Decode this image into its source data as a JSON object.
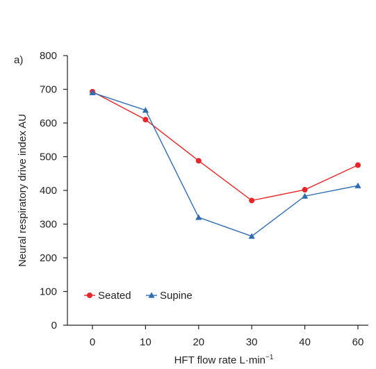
{
  "chart_data": {
    "type": "line",
    "panel_label": "a)",
    "xlabel": "HFT flow rate L·min",
    "xlabel_sup": "−1",
    "ylabel": "Neural respiratory drive index AU",
    "categories": [
      "0",
      "10",
      "20",
      "30",
      "40",
      "60"
    ],
    "ylim": [
      0,
      800
    ],
    "yticks": [
      0,
      100,
      200,
      300,
      400,
      500,
      600,
      700,
      800
    ],
    "grid": false,
    "legend_position": "bottom-left",
    "series": [
      {
        "name": "Seated",
        "color": "#e8262a",
        "marker": "circle",
        "values": [
          693,
          610,
          488,
          370,
          402,
          475
        ]
      },
      {
        "name": "Supine",
        "color": "#2f6db3",
        "marker": "triangle",
        "values": [
          690,
          638,
          320,
          264,
          383,
          414
        ]
      }
    ]
  }
}
